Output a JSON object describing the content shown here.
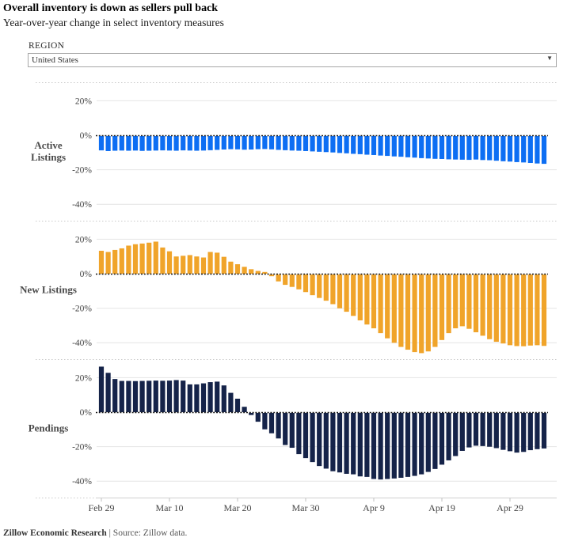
{
  "header": {
    "title": "Overall inventory is down as sellers pull back",
    "subtitle": "Year-over-year change in select inventory measures"
  },
  "region": {
    "label": "REGION",
    "selected": "United States"
  },
  "footer": {
    "brand": "Zillow Economic Research",
    "rest": " | Source: Zillow data."
  },
  "chart_data": {
    "type": "bar",
    "x_unit": "day",
    "x_ticks": [
      {
        "label": "Feb 29",
        "day": 0
      },
      {
        "label": "Mar 10",
        "day": 10
      },
      {
        "label": "Mar 20",
        "day": 20
      },
      {
        "label": "Mar 30",
        "day": 30
      },
      {
        "label": "Apr 9",
        "day": 40
      },
      {
        "label": "Apr 19",
        "day": 50
      },
      {
        "label": "Apr 29",
        "day": 60
      }
    ],
    "y_ticks": [
      20,
      0,
      -20,
      -40
    ],
    "y_tick_labels": [
      "20%",
      "0%",
      "-20%",
      "-40%"
    ],
    "ylim": [
      31,
      -49
    ],
    "grid": true,
    "panels": [
      {
        "label": "Active Listings",
        "label_lines": [
          "Active",
          "Listings"
        ],
        "color": "#0d6ef3",
        "values": [
          -8.3,
          -8.7,
          -8.5,
          -8.4,
          -8.5,
          -8.4,
          -8.6,
          -8.5,
          -8.4,
          -8.3,
          -8.4,
          -8.5,
          -8.3,
          -8.4,
          -8.5,
          -8.4,
          -8.2,
          -8.0,
          -7.8,
          -7.6,
          -7.7,
          -7.9,
          -7.8,
          -7.6,
          -7.5,
          -7.7,
          -8.0,
          -8.2,
          -8.4,
          -8.5,
          -8.7,
          -8.9,
          -9.1,
          -9.3,
          -9.5,
          -9.8,
          -10.0,
          -10.3,
          -10.5,
          -10.8,
          -11.0,
          -11.3,
          -11.5,
          -11.8,
          -12.0,
          -12.3,
          -12.5,
          -12.8,
          -13.0,
          -13.2,
          -13.3,
          -13.5,
          -13.6,
          -13.7,
          -13.8,
          -13.6,
          -13.9,
          -14.0,
          -14.3,
          -14.6,
          -14.8,
          -15.1,
          -15.3,
          -15.6,
          -15.9,
          -16.1
        ]
      },
      {
        "label": "New Listings",
        "label_lines": [
          "New Listings"
        ],
        "color": "#f0a42a",
        "values": [
          13.3,
          12.6,
          13.8,
          14.7,
          16.3,
          17.1,
          17.5,
          18.0,
          18.6,
          15.2,
          13.0,
          10.0,
          10.4,
          10.8,
          10.0,
          9.4,
          12.6,
          12.2,
          9.8,
          7.0,
          5.5,
          4.0,
          2.6,
          1.6,
          1.0,
          -1.0,
          -4.0,
          -6.0,
          -7.2,
          -8.6,
          -10.2,
          -12.0,
          -13.6,
          -15.2,
          -17.2,
          -19.6,
          -21.6,
          -24.0,
          -26.6,
          -29.0,
          -31.2,
          -34.0,
          -37.0,
          -39.6,
          -42.0,
          -43.6,
          -45.0,
          -45.6,
          -44.6,
          -42.0,
          -38.0,
          -34.0,
          -31.2,
          -30.0,
          -31.5,
          -33.5,
          -35.5,
          -37.5,
          -39.0,
          -40.0,
          -41.0,
          -41.5,
          -41.6,
          -41.2,
          -41.0,
          -41.4
        ]
      },
      {
        "label": "Pendings",
        "label_lines": [
          "Pendings"
        ],
        "color": "#152349",
        "values": [
          26.4,
          22.8,
          19.2,
          18.1,
          18.1,
          18.0,
          18.1,
          18.2,
          18.3,
          18.2,
          18.3,
          18.6,
          18.3,
          16.1,
          16.1,
          16.7,
          17.4,
          17.7,
          15.5,
          11.2,
          7.8,
          3.1,
          -1.2,
          -5.1,
          -9.5,
          -11.8,
          -14.8,
          -18.6,
          -20.2,
          -23.9,
          -26.2,
          -28.5,
          -30.8,
          -32.3,
          -33.8,
          -34.5,
          -35.3,
          -35.6,
          -36.8,
          -37.1,
          -38.3,
          -38.6,
          -38.3,
          -38.0,
          -37.6,
          -37.1,
          -36.5,
          -35.6,
          -34.2,
          -32.5,
          -30.0,
          -27.5,
          -25.0,
          -22.0,
          -20.0,
          -19.0,
          -19.2,
          -19.6,
          -20.4,
          -21.4,
          -22.2,
          -23.0,
          -22.6,
          -21.6,
          -21.0,
          -20.6
        ]
      }
    ]
  }
}
